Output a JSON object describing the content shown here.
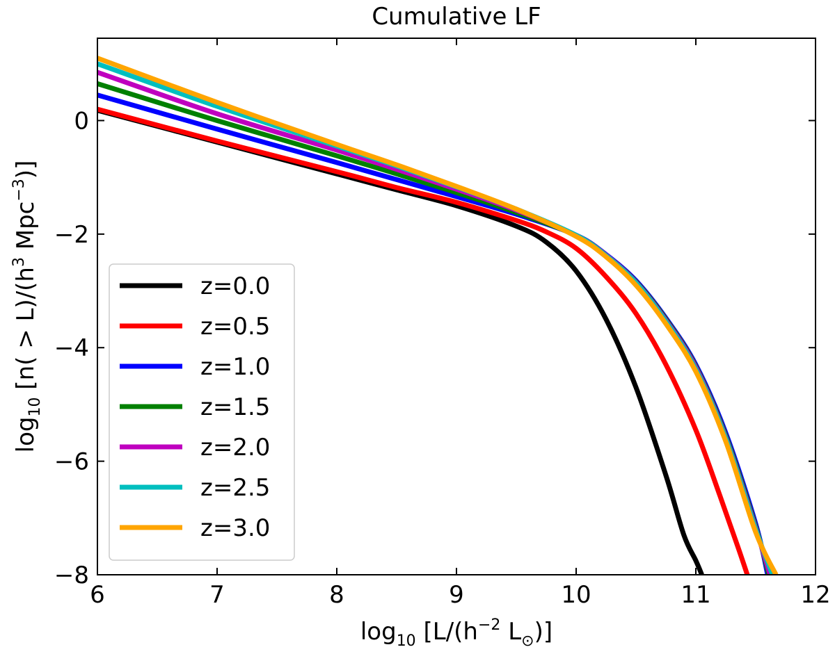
{
  "chart_data": {
    "type": "line",
    "title": "Cumulative LF",
    "xlabel": {
      "pre": "log",
      "sub1": "10",
      "mid": " [L/(h",
      "sup": "−2",
      "post_a": " L",
      "sub2": "⊙",
      "post_b": ")]"
    },
    "ylabel": {
      "pre": "log",
      "sub1": "10",
      "mid": " [n( > L)/(h",
      "sup1": "3",
      "mid2": " Mpc",
      "sup2": "−3",
      "post": ")]"
    },
    "xlim": [
      6,
      12
    ],
    "ylim": [
      -8,
      1.45
    ],
    "xticks": [
      6,
      7,
      8,
      9,
      10,
      11,
      12
    ],
    "xtick_labels": [
      "6",
      "7",
      "8",
      "9",
      "10",
      "11",
      "12"
    ],
    "yticks": [
      -8,
      -6,
      -4,
      -2,
      0
    ],
    "ytick_labels": [
      "−8",
      "−6",
      "−4",
      "−2",
      "0"
    ],
    "legend_position": "center-left",
    "series": [
      {
        "name": "z=0.0",
        "color": "#000000",
        "x": [
          6.0,
          7.0,
          8.0,
          8.5,
          9.0,
          9.5,
          9.75,
          10.0,
          10.25,
          10.5,
          10.75,
          10.9,
          11.0,
          11.05
        ],
        "y": [
          0.18,
          -0.38,
          -0.94,
          -1.22,
          -1.5,
          -1.86,
          -2.14,
          -2.65,
          -3.5,
          -4.7,
          -6.25,
          -7.3,
          -7.75,
          -8.0
        ]
      },
      {
        "name": "z=0.5",
        "color": "#ff0000",
        "x": [
          6.0,
          7.0,
          8.0,
          8.5,
          9.0,
          9.5,
          9.75,
          10.0,
          10.25,
          10.5,
          10.75,
          11.0,
          11.2,
          11.35,
          11.43
        ],
        "y": [
          0.2,
          -0.36,
          -0.9,
          -1.18,
          -1.44,
          -1.76,
          -1.96,
          -2.25,
          -2.75,
          -3.4,
          -4.3,
          -5.45,
          -6.6,
          -7.5,
          -8.0
        ]
      },
      {
        "name": "z=1.0",
        "color": "#0000ff",
        "x": [
          6.0,
          7.0,
          8.0,
          8.5,
          9.0,
          9.5,
          10.0,
          10.25,
          10.5,
          10.75,
          11.0,
          11.25,
          11.5,
          11.6
        ],
        "y": [
          0.45,
          -0.15,
          -0.74,
          -1.04,
          -1.34,
          -1.65,
          -2.02,
          -2.36,
          -2.82,
          -3.48,
          -4.3,
          -5.5,
          -7.1,
          -8.0
        ]
      },
      {
        "name": "z=1.5",
        "color": "#008000",
        "x": [
          6.0,
          7.0,
          8.0,
          8.5,
          9.0,
          9.5,
          10.0,
          10.25,
          10.5,
          10.75,
          11.0,
          11.25,
          11.5,
          11.61
        ],
        "y": [
          0.65,
          0.0,
          -0.62,
          -0.94,
          -1.27,
          -1.62,
          -2.02,
          -2.37,
          -2.84,
          -3.5,
          -4.33,
          -5.55,
          -7.15,
          -8.0
        ]
      },
      {
        "name": "z=2.0",
        "color": "#bf00bf",
        "x": [
          6.0,
          7.0,
          8.0,
          8.5,
          9.0,
          9.5,
          10.0,
          10.25,
          10.5,
          10.75,
          11.0,
          11.25,
          11.5,
          11.62
        ],
        "y": [
          0.85,
          0.12,
          -0.52,
          -0.86,
          -1.21,
          -1.58,
          -2.02,
          -2.37,
          -2.85,
          -3.52,
          -4.35,
          -5.58,
          -7.18,
          -8.0
        ]
      },
      {
        "name": "z=2.5",
        "color": "#00bfbf",
        "x": [
          6.0,
          7.0,
          8.0,
          8.5,
          9.0,
          9.5,
          10.0,
          10.25,
          10.5,
          10.75,
          11.0,
          11.25,
          11.5,
          11.64
        ],
        "y": [
          1.0,
          0.25,
          -0.45,
          -0.8,
          -1.17,
          -1.56,
          -2.02,
          -2.38,
          -2.86,
          -3.54,
          -4.38,
          -5.6,
          -7.2,
          -8.0
        ]
      },
      {
        "name": "z=3.0",
        "color": "#ffa500",
        "x": [
          6.0,
          7.0,
          8.0,
          8.5,
          9.0,
          9.5,
          10.0,
          10.25,
          10.5,
          10.75,
          11.0,
          11.25,
          11.5,
          11.67
        ],
        "y": [
          1.1,
          0.32,
          -0.42,
          -0.78,
          -1.16,
          -1.56,
          -2.04,
          -2.4,
          -2.9,
          -3.58,
          -4.42,
          -5.65,
          -7.25,
          -8.0
        ]
      }
    ]
  }
}
